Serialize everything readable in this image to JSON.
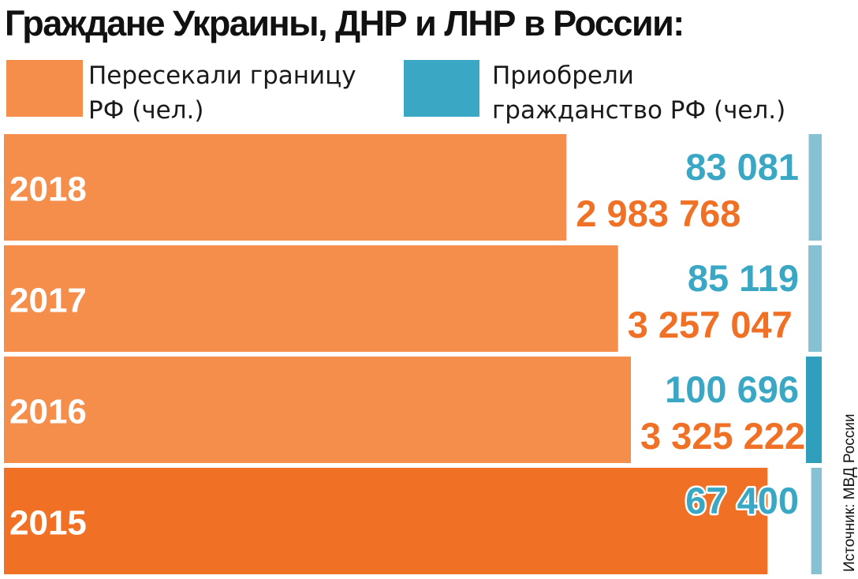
{
  "title": "Граждане Украины, ДНР и ЛНР в России:",
  "legend": {
    "border": {
      "label": "Пересекали границу РФ (чел.)",
      "color": "#f58d4b"
    },
    "citizenship": {
      "label": "Приобрели гражданство РФ (чел.)",
      "color": "#3aa7c4"
    }
  },
  "source": "Источник: МВД России",
  "colors": {
    "bar": "#f58d4b",
    "bar_highlight": "#f07126",
    "border_number": "#f07126",
    "citizen_number": "#3aa7c4",
    "citizen_strip": "#86c1d3",
    "citizen_strip_highlight": "#2f9fbd",
    "year_text": "#ffffff"
  },
  "chart_data": {
    "type": "bar",
    "orientation": "horizontal",
    "categories": [
      "2018",
      "2017",
      "2016",
      "2015"
    ],
    "series": [
      {
        "name": "Пересекали границу РФ (чел.)",
        "values": [
          2983768,
          3257047,
          3325222,
          4050000
        ]
      },
      {
        "name": "Приобрели гражданство РФ (чел.)",
        "values": [
          83081,
          85119,
          100696,
          67400
        ]
      }
    ],
    "data_labels": {
      "border": [
        "2 983 768",
        "3 257 047",
        "3 325 222",
        ""
      ],
      "citizenship": [
        "83 081",
        "85 119",
        "100 696",
        "67 400"
      ]
    },
    "highlight": {
      "border": "2015",
      "citizenship": "2016"
    },
    "xlim": [
      0,
      4350000
    ]
  }
}
